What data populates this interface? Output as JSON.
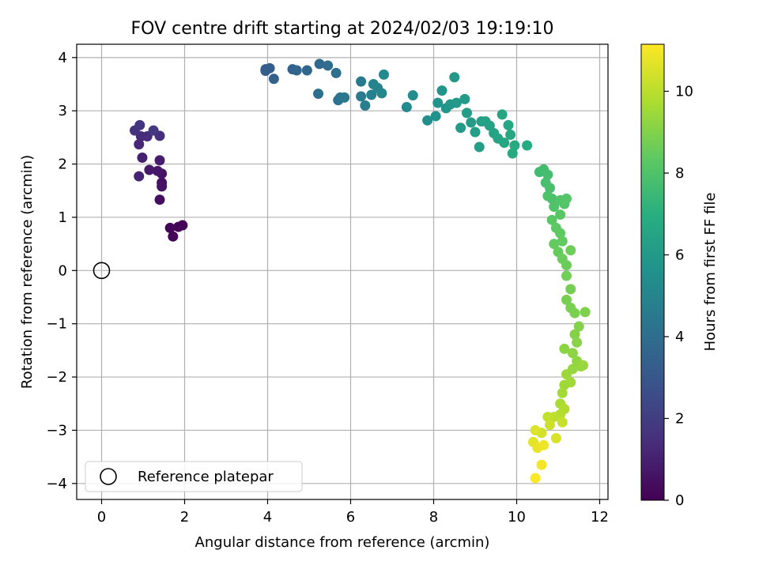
{
  "chart_data": {
    "type": "scatter",
    "title": "FOV centre drift starting at 2024/02/03 19:19:10",
    "xlabel": "Angular distance from reference (arcmin)",
    "ylabel": "Rotation from reference (arcmin)",
    "xlim": [
      -0.6,
      12.2
    ],
    "ylim": [
      -4.3,
      4.25
    ],
    "xticks": [
      0,
      2,
      4,
      6,
      8,
      10,
      12
    ],
    "yticks": [
      4,
      3,
      2,
      1,
      0,
      -1,
      -2,
      -3,
      -4
    ],
    "grid": true,
    "legend": {
      "location": "lower-left",
      "entries": [
        "Reference platepar"
      ]
    },
    "reference_marker": {
      "x": 0,
      "y": 0,
      "label": "Reference platepar"
    },
    "colorbar": {
      "label": "Hours from first FF file",
      "colormap": "viridis",
      "min": 0,
      "max": 11.15,
      "ticks": [
        0,
        2,
        4,
        6,
        8,
        10
      ]
    },
    "points": [
      [
        1.95,
        0.85,
        0.05
      ],
      [
        1.85,
        0.82,
        0.1
      ],
      [
        1.65,
        0.8,
        0.15
      ],
      [
        1.72,
        0.64,
        0.2
      ],
      [
        1.4,
        1.33,
        0.4
      ],
      [
        1.45,
        1.58,
        0.5
      ],
      [
        1.45,
        1.65,
        0.55
      ],
      [
        1.45,
        1.82,
        0.6
      ],
      [
        1.35,
        1.87,
        0.7
      ],
      [
        1.15,
        1.89,
        0.8
      ],
      [
        1.4,
        2.07,
        0.9
      ],
      [
        0.98,
        2.12,
        1.0
      ],
      [
        0.9,
        1.77,
        1.1
      ],
      [
        0.9,
        2.37,
        1.2
      ],
      [
        0.95,
        2.52,
        1.3
      ],
      [
        1.1,
        2.52,
        1.4
      ],
      [
        1.4,
        2.53,
        1.5
      ],
      [
        0.8,
        2.63,
        1.6
      ],
      [
        0.92,
        2.73,
        1.7
      ],
      [
        1.25,
        2.63,
        1.8
      ],
      [
        3.95,
        3.75,
        3.2
      ],
      [
        4.05,
        3.8,
        3.3
      ],
      [
        4.15,
        3.6,
        3.4
      ],
      [
        3.95,
        3.78,
        3.3
      ],
      [
        4.6,
        3.78,
        3.5
      ],
      [
        4.7,
        3.76,
        3.6
      ],
      [
        4.95,
        3.76,
        3.7
      ],
      [
        5.25,
        3.88,
        3.8
      ],
      [
        5.45,
        3.85,
        3.9
      ],
      [
        5.65,
        3.71,
        4.0
      ],
      [
        5.22,
        3.32,
        4.1
      ],
      [
        5.7,
        3.2,
        4.2
      ],
      [
        5.75,
        3.25,
        4.3
      ],
      [
        5.85,
        3.25,
        4.4
      ],
      [
        6.25,
        3.55,
        4.5
      ],
      [
        6.25,
        3.27,
        4.6
      ],
      [
        6.35,
        3.1,
        4.7
      ],
      [
        6.5,
        3.3,
        4.8
      ],
      [
        6.55,
        3.5,
        4.9
      ],
      [
        6.65,
        3.43,
        5.0
      ],
      [
        6.75,
        3.33,
        5.1
      ],
      [
        6.8,
        3.68,
        5.2
      ],
      [
        7.35,
        3.07,
        5.3
      ],
      [
        7.5,
        3.29,
        5.4
      ],
      [
        7.85,
        2.82,
        5.5
      ],
      [
        8.05,
        2.9,
        5.6
      ],
      [
        8.1,
        3.15,
        5.7
      ],
      [
        8.2,
        3.38,
        5.75
      ],
      [
        8.3,
        3.05,
        5.8
      ],
      [
        8.4,
        3.12,
        5.85
      ],
      [
        8.5,
        3.63,
        5.9
      ],
      [
        8.55,
        3.15,
        5.95
      ],
      [
        8.65,
        2.68,
        6.0
      ],
      [
        8.75,
        3.22,
        6.05
      ],
      [
        8.8,
        2.96,
        6.1
      ],
      [
        8.9,
        2.78,
        6.15
      ],
      [
        9.0,
        2.6,
        6.2
      ],
      [
        9.1,
        2.32,
        6.25
      ],
      [
        9.15,
        2.8,
        6.3
      ],
      [
        9.25,
        2.8,
        6.35
      ],
      [
        9.35,
        2.72,
        6.4
      ],
      [
        9.45,
        2.58,
        6.45
      ],
      [
        9.55,
        2.48,
        6.5
      ],
      [
        9.65,
        2.93,
        6.55
      ],
      [
        9.7,
        2.4,
        6.6
      ],
      [
        9.8,
        2.73,
        6.65
      ],
      [
        9.85,
        2.55,
        6.7
      ],
      [
        9.9,
        2.2,
        6.75
      ],
      [
        9.95,
        2.35,
        6.8
      ],
      [
        10.25,
        2.35,
        6.85
      ],
      [
        10.55,
        1.85,
        7.6
      ],
      [
        10.65,
        1.9,
        7.7
      ],
      [
        10.75,
        1.8,
        7.75
      ],
      [
        10.7,
        1.65,
        7.8
      ],
      [
        10.8,
        1.55,
        7.85
      ],
      [
        10.85,
        1.35,
        7.9
      ],
      [
        10.75,
        1.4,
        7.95
      ],
      [
        10.9,
        1.2,
        8.0
      ],
      [
        11.05,
        1.32,
        8.05
      ],
      [
        11.15,
        1.25,
        8.1
      ],
      [
        11.2,
        1.35,
        8.15
      ],
      [
        11.05,
        1.05,
        8.2
      ],
      [
        10.85,
        0.95,
        8.25
      ],
      [
        10.95,
        0.8,
        8.3
      ],
      [
        11.05,
        0.7,
        8.35
      ],
      [
        11.1,
        0.55,
        8.4
      ],
      [
        10.9,
        0.5,
        8.45
      ],
      [
        11.0,
        0.35,
        8.5
      ],
      [
        11.1,
        0.22,
        8.55
      ],
      [
        11.2,
        0.1,
        8.6
      ],
      [
        11.3,
        0.38,
        8.65
      ],
      [
        11.2,
        -0.1,
        8.7
      ],
      [
        11.3,
        -0.35,
        8.75
      ],
      [
        11.2,
        -0.55,
        8.8
      ],
      [
        11.3,
        -0.7,
        8.85
      ],
      [
        11.4,
        -0.8,
        8.9
      ],
      [
        11.65,
        -0.78,
        8.95
      ],
      [
        11.5,
        -1.05,
        9.0
      ],
      [
        11.4,
        -1.2,
        9.05
      ],
      [
        11.45,
        -1.35,
        9.1
      ],
      [
        11.15,
        -1.47,
        9.15
      ],
      [
        11.35,
        -1.55,
        9.2
      ],
      [
        11.45,
        -1.7,
        9.25
      ],
      [
        11.55,
        -1.8,
        9.3
      ],
      [
        11.35,
        -1.85,
        9.35
      ],
      [
        11.6,
        -1.78,
        9.4
      ],
      [
        11.2,
        -1.95,
        9.45
      ],
      [
        11.15,
        -2.15,
        9.5
      ],
      [
        11.3,
        -2.1,
        9.55
      ],
      [
        11.1,
        -2.3,
        9.6
      ],
      [
        11.05,
        -2.5,
        9.7
      ],
      [
        11.15,
        -2.6,
        9.8
      ],
      [
        11.05,
        -2.7,
        9.9
      ],
      [
        10.9,
        -2.75,
        10.0
      ],
      [
        10.75,
        -2.75,
        10.1
      ],
      [
        11.1,
        -2.85,
        10.2
      ],
      [
        10.8,
        -2.9,
        10.3
      ],
      [
        10.6,
        -3.05,
        10.4
      ],
      [
        10.95,
        -3.15,
        10.5
      ],
      [
        10.45,
        -3.0,
        10.6
      ],
      [
        10.4,
        -3.22,
        10.7
      ],
      [
        10.5,
        -3.33,
        10.8
      ],
      [
        10.65,
        -3.28,
        10.9
      ],
      [
        10.6,
        -3.65,
        11.0
      ],
      [
        10.45,
        -3.9,
        11.1
      ]
    ]
  }
}
